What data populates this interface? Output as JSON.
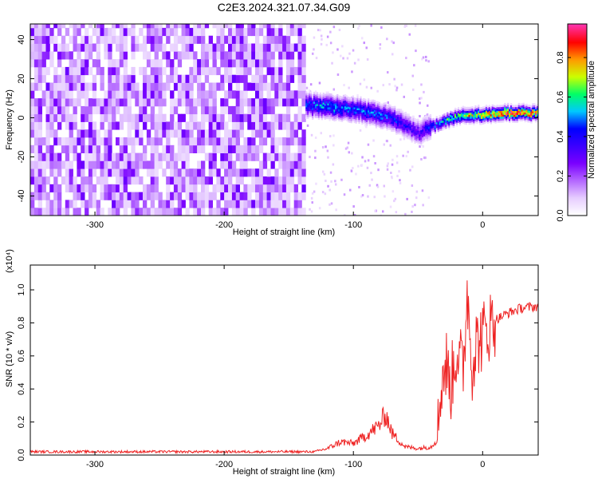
{
  "figure_title": "C2E3.2024.321.07.34.G09",
  "colors": {
    "spectrogram_palette": [
      "#ffffff",
      "#e6ccff",
      "#b366ff",
      "#7a00ff",
      "#3b00ff",
      "#0000ff",
      "#00c8ff",
      "#00ff66",
      "#ccff00",
      "#ff9900",
      "#ff0000",
      "#ff33aa"
    ],
    "snr_line": "#ee2222"
  },
  "chart_data": [
    {
      "type": "heatmap",
      "xlabel": "Height of straight line (km)",
      "ylabel": "Frequency (Hz)",
      "xlim": [
        -350,
        43
      ],
      "ylim": [
        -50,
        48
      ],
      "xticks": [
        -300,
        -200,
        -100,
        0
      ],
      "yticks": [
        -40,
        -20,
        0,
        20,
        40
      ],
      "colorbar": {
        "label": "Normalized spectral amplitude",
        "range": [
          0.0,
          0.97
        ],
        "ticks": [
          "0.0",
          "0.2",
          "0.4",
          "0.6",
          "0.8"
        ]
      },
      "noise_region_x": [
        -350,
        -137
      ],
      "ridge": {
        "x": [
          -137,
          -120,
          -100,
          -80,
          -70,
          -60,
          -50,
          -40,
          -30,
          -20,
          -10,
          0,
          10,
          20,
          30,
          43
        ],
        "center_freq": [
          6,
          5,
          4,
          1,
          -1,
          -4,
          -8,
          -5,
          -2,
          0,
          1,
          1,
          2,
          2,
          2,
          2
        ],
        "peak_amplitude": [
          0.5,
          0.55,
          0.5,
          0.5,
          0.45,
          0.4,
          0.35,
          0.45,
          0.6,
          0.7,
          0.8,
          0.85,
          0.92,
          0.95,
          0.9,
          0.9
        ]
      }
    },
    {
      "type": "line",
      "xlabel": "Height of straight line (km)",
      "ylabel": "SNR (10 * v/v)",
      "scale_label": "(x10⁴)",
      "xlim": [
        -350,
        43
      ],
      "ylim": [
        0.0,
        1.15
      ],
      "xticks": [
        -300,
        -200,
        -100,
        0
      ],
      "yticks": [
        "0.0",
        "0.2",
        "0.4",
        "0.6",
        "0.8",
        "1.0"
      ],
      "series": [
        {
          "x": [
            -350,
            -300,
            -250,
            -200,
            -150,
            -130,
            -120,
            -110,
            -100,
            -90,
            -80,
            -75,
            -70,
            -60,
            -50,
            -40,
            -35,
            -32,
            -28,
            -25,
            -20,
            -15,
            -12,
            -8,
            -5,
            0,
            5,
            10,
            20,
            30,
            43
          ],
          "y": [
            0.02,
            0.02,
            0.02,
            0.02,
            0.02,
            0.02,
            0.04,
            0.08,
            0.07,
            0.12,
            0.18,
            0.25,
            0.13,
            0.05,
            0.04,
            0.05,
            0.1,
            0.45,
            0.55,
            0.4,
            0.65,
            0.5,
            1.0,
            0.55,
            0.68,
            0.72,
            0.78,
            0.82,
            0.86,
            0.89,
            0.9
          ]
        }
      ]
    }
  ]
}
